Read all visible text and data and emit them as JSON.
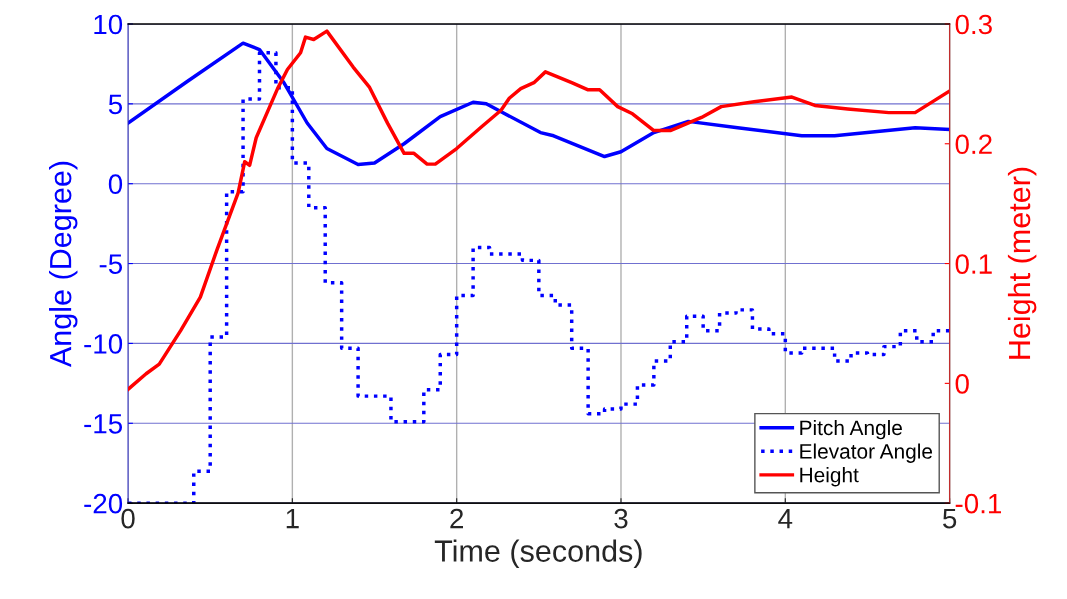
{
  "chart_data": {
    "type": "line",
    "xlabel": "Time (seconds)",
    "ylabel": "Angle (Degree)",
    "y2label": "Height (meter)",
    "xlim": [
      0,
      5
    ],
    "xticks": [
      0,
      1,
      2,
      3,
      4,
      5
    ],
    "ylim": [
      -20,
      10
    ],
    "yticks": [
      -20,
      -15,
      -10,
      -5,
      0,
      5,
      10
    ],
    "y2lim": [
      -0.1,
      0.3
    ],
    "y2ticks": [
      -0.1,
      0,
      0.1,
      0.2,
      0.3
    ],
    "grid": true,
    "legend": "bottom right",
    "marker": "none",
    "series": [
      {
        "name": "Pitch Angle",
        "color": "#0000ff",
        "line_style": "solid",
        "x": [
          0,
          0.36,
          0.7,
          0.8,
          0.95,
          1.09,
          1.21,
          1.4,
          1.5,
          1.68,
          1.9,
          2.1,
          2.18,
          2.51,
          2.59,
          2.9,
          3.0,
          3.2,
          3.41,
          3.71,
          4.1,
          4.3,
          4.79,
          5.0
        ],
        "values": [
          3.8,
          6.4,
          8.8,
          8.4,
          6.3,
          3.8,
          2.2,
          1.2,
          1.3,
          2.5,
          4.2,
          5.1,
          5.0,
          3.2,
          3.0,
          1.7,
          2.0,
          3.2,
          3.9,
          3.5,
          3.0,
          3.0,
          3.5,
          3.4
        ]
      },
      {
        "name": "Elevator Angle",
        "color": "#0000ff",
        "type": "step",
        "line_style": "dotted",
        "x": [
          0,
          0.4,
          0.5,
          0.6,
          0.7,
          0.8,
          0.9,
          1.0,
          1.1,
          1.2,
          1.3,
          1.4,
          1.6,
          1.8,
          1.9,
          2.0,
          2.1,
          2.2,
          2.4,
          2.5,
          2.6,
          2.7,
          2.8,
          2.9,
          3.0,
          3.1,
          3.2,
          3.3,
          3.4,
          3.5,
          3.6,
          3.7,
          3.8,
          3.9,
          4.0,
          4.1,
          4.3,
          4.4,
          4.5,
          4.6,
          4.7,
          4.8,
          4.9,
          5.0
        ],
        "values": [
          -20,
          -18,
          -9.6,
          -0.5,
          5.3,
          8.2,
          6.0,
          1.3,
          -1.5,
          -6.2,
          -10.3,
          -13.3,
          -14.9,
          -12.9,
          -10.7,
          -7.0,
          -4.0,
          -4.4,
          -4.8,
          -7.0,
          -7.6,
          -10.3,
          -14.4,
          -14.1,
          -13.8,
          -12.6,
          -11.1,
          -9.9,
          -8.3,
          -9.2,
          -8.1,
          -7.9,
          -9.1,
          -9.4,
          -10.6,
          -10.3,
          -11.1,
          -10.6,
          -10.7,
          -10.2,
          -9.2,
          -9.9,
          -9.2,
          -9.2
        ]
      },
      {
        "name": "Height",
        "color": "#ff0000",
        "line_style": "solid",
        "axis": "y2",
        "x": [
          0,
          0.11,
          0.19,
          0.32,
          0.44,
          0.54,
          0.67,
          0.71,
          0.74,
          0.78,
          0.91,
          0.97,
          1.05,
          1.08,
          1.13,
          1.21,
          1.37,
          1.47,
          1.58,
          1.68,
          1.74,
          1.82,
          1.87,
          2.0,
          2.15,
          2.27,
          2.32,
          2.39,
          2.47,
          2.54,
          2.7,
          2.8,
          2.87,
          2.98,
          3.07,
          3.2,
          3.3,
          3.49,
          3.61,
          3.81,
          4.04,
          4.18,
          4.38,
          4.63,
          4.79,
          5.0
        ],
        "values": [
          -0.005,
          0.008,
          0.016,
          0.044,
          0.072,
          0.111,
          0.159,
          0.185,
          0.182,
          0.205,
          0.246,
          0.262,
          0.276,
          0.289,
          0.287,
          0.294,
          0.264,
          0.247,
          0.217,
          0.192,
          0.192,
          0.183,
          0.183,
          0.196,
          0.214,
          0.228,
          0.238,
          0.246,
          0.251,
          0.26,
          0.251,
          0.245,
          0.245,
          0.231,
          0.225,
          0.211,
          0.211,
          0.222,
          0.231,
          0.235,
          0.239,
          0.232,
          0.229,
          0.226,
          0.226,
          0.244
        ]
      }
    ]
  }
}
